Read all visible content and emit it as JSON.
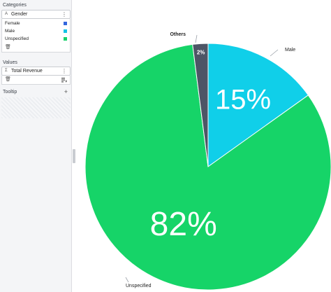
{
  "sidebar": {
    "categories_title": "Categories",
    "category_field": {
      "type_icon": "A",
      "label": "Gender",
      "menu_icon": "⋮"
    },
    "legend_items": [
      {
        "label": "Female",
        "color": "#3366dd"
      },
      {
        "label": "Male",
        "color": "#14c3e5"
      },
      {
        "label": "Unspecified",
        "color": "#17d16b"
      }
    ],
    "delete_icon": "trash-icon",
    "values_title": "Values",
    "value_field": {
      "type_icon": "Σ",
      "label": "Total Revenue",
      "menu_icon": "⋮"
    },
    "tooltip_title": "Tooltip",
    "add_icon": "+"
  },
  "chart_data": {
    "type": "pie",
    "slices": [
      {
        "label": "Male",
        "value": 15,
        "display": "15%",
        "color": "#10cfe9"
      },
      {
        "label": "Unspecified",
        "value": 82,
        "display": "82%",
        "color": "#16d468"
      },
      {
        "label": "Others",
        "value": 2,
        "display": "2%",
        "color": "#4d5566"
      }
    ]
  }
}
